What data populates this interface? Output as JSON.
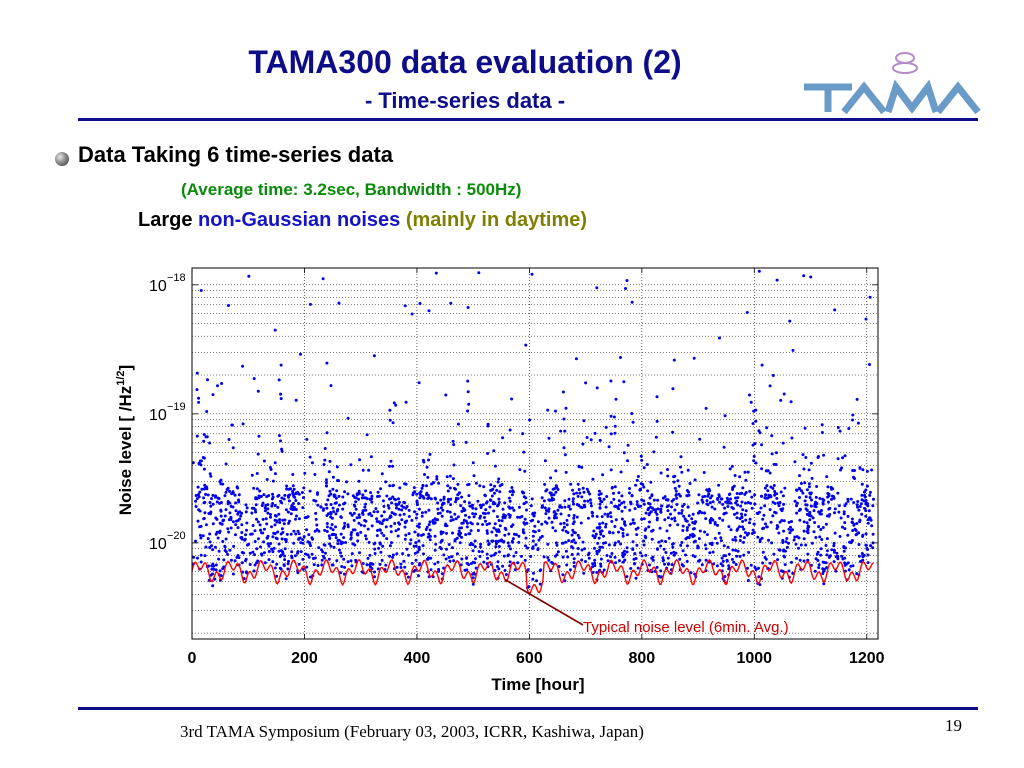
{
  "slide": {
    "title": "TAMA300 data evaluation (2)",
    "subtitle": "- Time-series data -",
    "bullet_heading": "Data Taking 6 time-series data",
    "detail": "(Average time: 3.2sec, Bandwidth : 500Hz)",
    "note_prefix": "Large ",
    "note_highlight": "non-Gaussian noises",
    "note_suffix": " (mainly in daytime)",
    "footer": "3rd TAMA Symposium (February 03, 2003, ICRR, Kashiwa, Japan)",
    "page_number": "19",
    "logo_text": "TAMA",
    "colors": {
      "title": "#0d0d8a",
      "rule": "#0d0d8a",
      "detail": "#0a8a0a",
      "highlight": "#1414c8",
      "olive": "#808000"
    }
  },
  "chart_data": {
    "type": "scatter",
    "xlabel": "Time  [hour]",
    "ylabel_main": "Noise level  [ /Hz",
    "ylabel_sup": "1/2",
    "ylabel_end": "]",
    "xlim": [
      0,
      1220
    ],
    "ylim": [
      1.8e-21,
      1.35e-18
    ],
    "yscale": "log",
    "grid": true,
    "x_ticks": [
      0,
      200,
      400,
      600,
      800,
      1000,
      1200
    ],
    "x_tick_labels": [
      "0",
      "200",
      "400",
      "600",
      "800",
      "1000",
      "1200"
    ],
    "y_ticks": [
      1e-18,
      1e-19,
      1e-20
    ],
    "y_tick_labels": [
      {
        "base": "10",
        "exp": "−18"
      },
      {
        "base": "10",
        "exp": "−19"
      },
      {
        "base": "10",
        "exp": "−20"
      }
    ],
    "series": [
      {
        "values": "scatter of 3.2 s averaged noise levels, baseline ~8e-21 with bursts up to ~1e-18",
        "color": "#0000ee"
      },
      {
        "values": "6-min averaged noise level, ~5.8e-21 to 8e-21",
        "color": "#ff0000"
      }
    ],
    "annotation": {
      "text": "Typical noise level (6min. Avg.)",
      "x": 610,
      "y": 5.2e-21,
      "color": "#cc0000",
      "arrow_color": "#800000"
    },
    "colors": {
      "points": "#0000ee",
      "average": "#ff0000",
      "grid": "#000000"
    }
  }
}
